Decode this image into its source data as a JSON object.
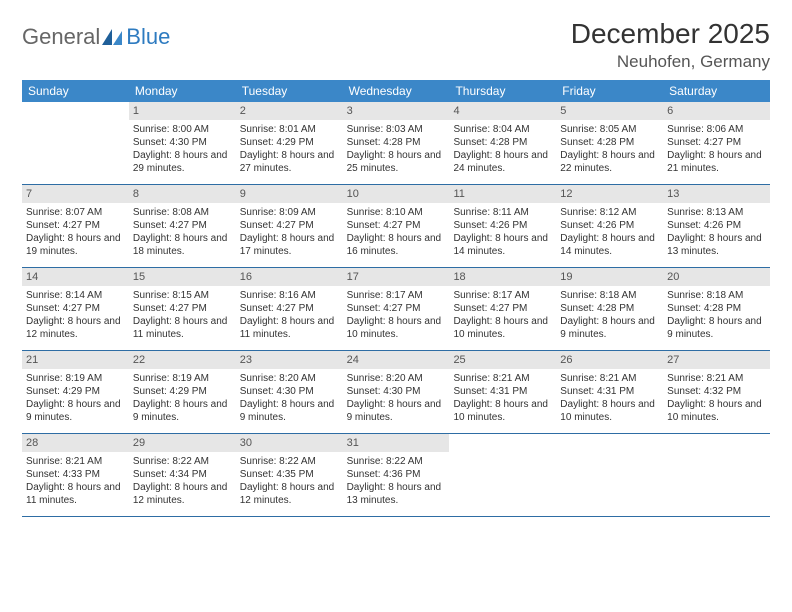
{
  "brand": {
    "part1": "General",
    "part2": "Blue"
  },
  "title": "December 2025",
  "location": "Neuhofen, Germany",
  "colors": {
    "header_bg": "#3b87c8",
    "header_text": "#ffffff",
    "daynum_bg": "#e6e6e6",
    "rule": "#2e6da4",
    "brand_gray": "#666666",
    "brand_blue": "#2e7bc0"
  },
  "weekdays": [
    "Sunday",
    "Monday",
    "Tuesday",
    "Wednesday",
    "Thursday",
    "Friday",
    "Saturday"
  ],
  "weeks": [
    [
      {
        "n": "",
        "sr": "",
        "ss": "",
        "dl": ""
      },
      {
        "n": "1",
        "sr": "Sunrise: 8:00 AM",
        "ss": "Sunset: 4:30 PM",
        "dl": "Daylight: 8 hours and 29 minutes."
      },
      {
        "n": "2",
        "sr": "Sunrise: 8:01 AM",
        "ss": "Sunset: 4:29 PM",
        "dl": "Daylight: 8 hours and 27 minutes."
      },
      {
        "n": "3",
        "sr": "Sunrise: 8:03 AM",
        "ss": "Sunset: 4:28 PM",
        "dl": "Daylight: 8 hours and 25 minutes."
      },
      {
        "n": "4",
        "sr": "Sunrise: 8:04 AM",
        "ss": "Sunset: 4:28 PM",
        "dl": "Daylight: 8 hours and 24 minutes."
      },
      {
        "n": "5",
        "sr": "Sunrise: 8:05 AM",
        "ss": "Sunset: 4:28 PM",
        "dl": "Daylight: 8 hours and 22 minutes."
      },
      {
        "n": "6",
        "sr": "Sunrise: 8:06 AM",
        "ss": "Sunset: 4:27 PM",
        "dl": "Daylight: 8 hours and 21 minutes."
      }
    ],
    [
      {
        "n": "7",
        "sr": "Sunrise: 8:07 AM",
        "ss": "Sunset: 4:27 PM",
        "dl": "Daylight: 8 hours and 19 minutes."
      },
      {
        "n": "8",
        "sr": "Sunrise: 8:08 AM",
        "ss": "Sunset: 4:27 PM",
        "dl": "Daylight: 8 hours and 18 minutes."
      },
      {
        "n": "9",
        "sr": "Sunrise: 8:09 AM",
        "ss": "Sunset: 4:27 PM",
        "dl": "Daylight: 8 hours and 17 minutes."
      },
      {
        "n": "10",
        "sr": "Sunrise: 8:10 AM",
        "ss": "Sunset: 4:27 PM",
        "dl": "Daylight: 8 hours and 16 minutes."
      },
      {
        "n": "11",
        "sr": "Sunrise: 8:11 AM",
        "ss": "Sunset: 4:26 PM",
        "dl": "Daylight: 8 hours and 14 minutes."
      },
      {
        "n": "12",
        "sr": "Sunrise: 8:12 AM",
        "ss": "Sunset: 4:26 PM",
        "dl": "Daylight: 8 hours and 14 minutes."
      },
      {
        "n": "13",
        "sr": "Sunrise: 8:13 AM",
        "ss": "Sunset: 4:26 PM",
        "dl": "Daylight: 8 hours and 13 minutes."
      }
    ],
    [
      {
        "n": "14",
        "sr": "Sunrise: 8:14 AM",
        "ss": "Sunset: 4:27 PM",
        "dl": "Daylight: 8 hours and 12 minutes."
      },
      {
        "n": "15",
        "sr": "Sunrise: 8:15 AM",
        "ss": "Sunset: 4:27 PM",
        "dl": "Daylight: 8 hours and 11 minutes."
      },
      {
        "n": "16",
        "sr": "Sunrise: 8:16 AM",
        "ss": "Sunset: 4:27 PM",
        "dl": "Daylight: 8 hours and 11 minutes."
      },
      {
        "n": "17",
        "sr": "Sunrise: 8:17 AM",
        "ss": "Sunset: 4:27 PM",
        "dl": "Daylight: 8 hours and 10 minutes."
      },
      {
        "n": "18",
        "sr": "Sunrise: 8:17 AM",
        "ss": "Sunset: 4:27 PM",
        "dl": "Daylight: 8 hours and 10 minutes."
      },
      {
        "n": "19",
        "sr": "Sunrise: 8:18 AM",
        "ss": "Sunset: 4:28 PM",
        "dl": "Daylight: 8 hours and 9 minutes."
      },
      {
        "n": "20",
        "sr": "Sunrise: 8:18 AM",
        "ss": "Sunset: 4:28 PM",
        "dl": "Daylight: 8 hours and 9 minutes."
      }
    ],
    [
      {
        "n": "21",
        "sr": "Sunrise: 8:19 AM",
        "ss": "Sunset: 4:29 PM",
        "dl": "Daylight: 8 hours and 9 minutes."
      },
      {
        "n": "22",
        "sr": "Sunrise: 8:19 AM",
        "ss": "Sunset: 4:29 PM",
        "dl": "Daylight: 8 hours and 9 minutes."
      },
      {
        "n": "23",
        "sr": "Sunrise: 8:20 AM",
        "ss": "Sunset: 4:30 PM",
        "dl": "Daylight: 8 hours and 9 minutes."
      },
      {
        "n": "24",
        "sr": "Sunrise: 8:20 AM",
        "ss": "Sunset: 4:30 PM",
        "dl": "Daylight: 8 hours and 9 minutes."
      },
      {
        "n": "25",
        "sr": "Sunrise: 8:21 AM",
        "ss": "Sunset: 4:31 PM",
        "dl": "Daylight: 8 hours and 10 minutes."
      },
      {
        "n": "26",
        "sr": "Sunrise: 8:21 AM",
        "ss": "Sunset: 4:31 PM",
        "dl": "Daylight: 8 hours and 10 minutes."
      },
      {
        "n": "27",
        "sr": "Sunrise: 8:21 AM",
        "ss": "Sunset: 4:32 PM",
        "dl": "Daylight: 8 hours and 10 minutes."
      }
    ],
    [
      {
        "n": "28",
        "sr": "Sunrise: 8:21 AM",
        "ss": "Sunset: 4:33 PM",
        "dl": "Daylight: 8 hours and 11 minutes."
      },
      {
        "n": "29",
        "sr": "Sunrise: 8:22 AM",
        "ss": "Sunset: 4:34 PM",
        "dl": "Daylight: 8 hours and 12 minutes."
      },
      {
        "n": "30",
        "sr": "Sunrise: 8:22 AM",
        "ss": "Sunset: 4:35 PM",
        "dl": "Daylight: 8 hours and 12 minutes."
      },
      {
        "n": "31",
        "sr": "Sunrise: 8:22 AM",
        "ss": "Sunset: 4:36 PM",
        "dl": "Daylight: 8 hours and 13 minutes."
      },
      {
        "n": "",
        "sr": "",
        "ss": "",
        "dl": ""
      },
      {
        "n": "",
        "sr": "",
        "ss": "",
        "dl": ""
      },
      {
        "n": "",
        "sr": "",
        "ss": "",
        "dl": ""
      }
    ]
  ]
}
